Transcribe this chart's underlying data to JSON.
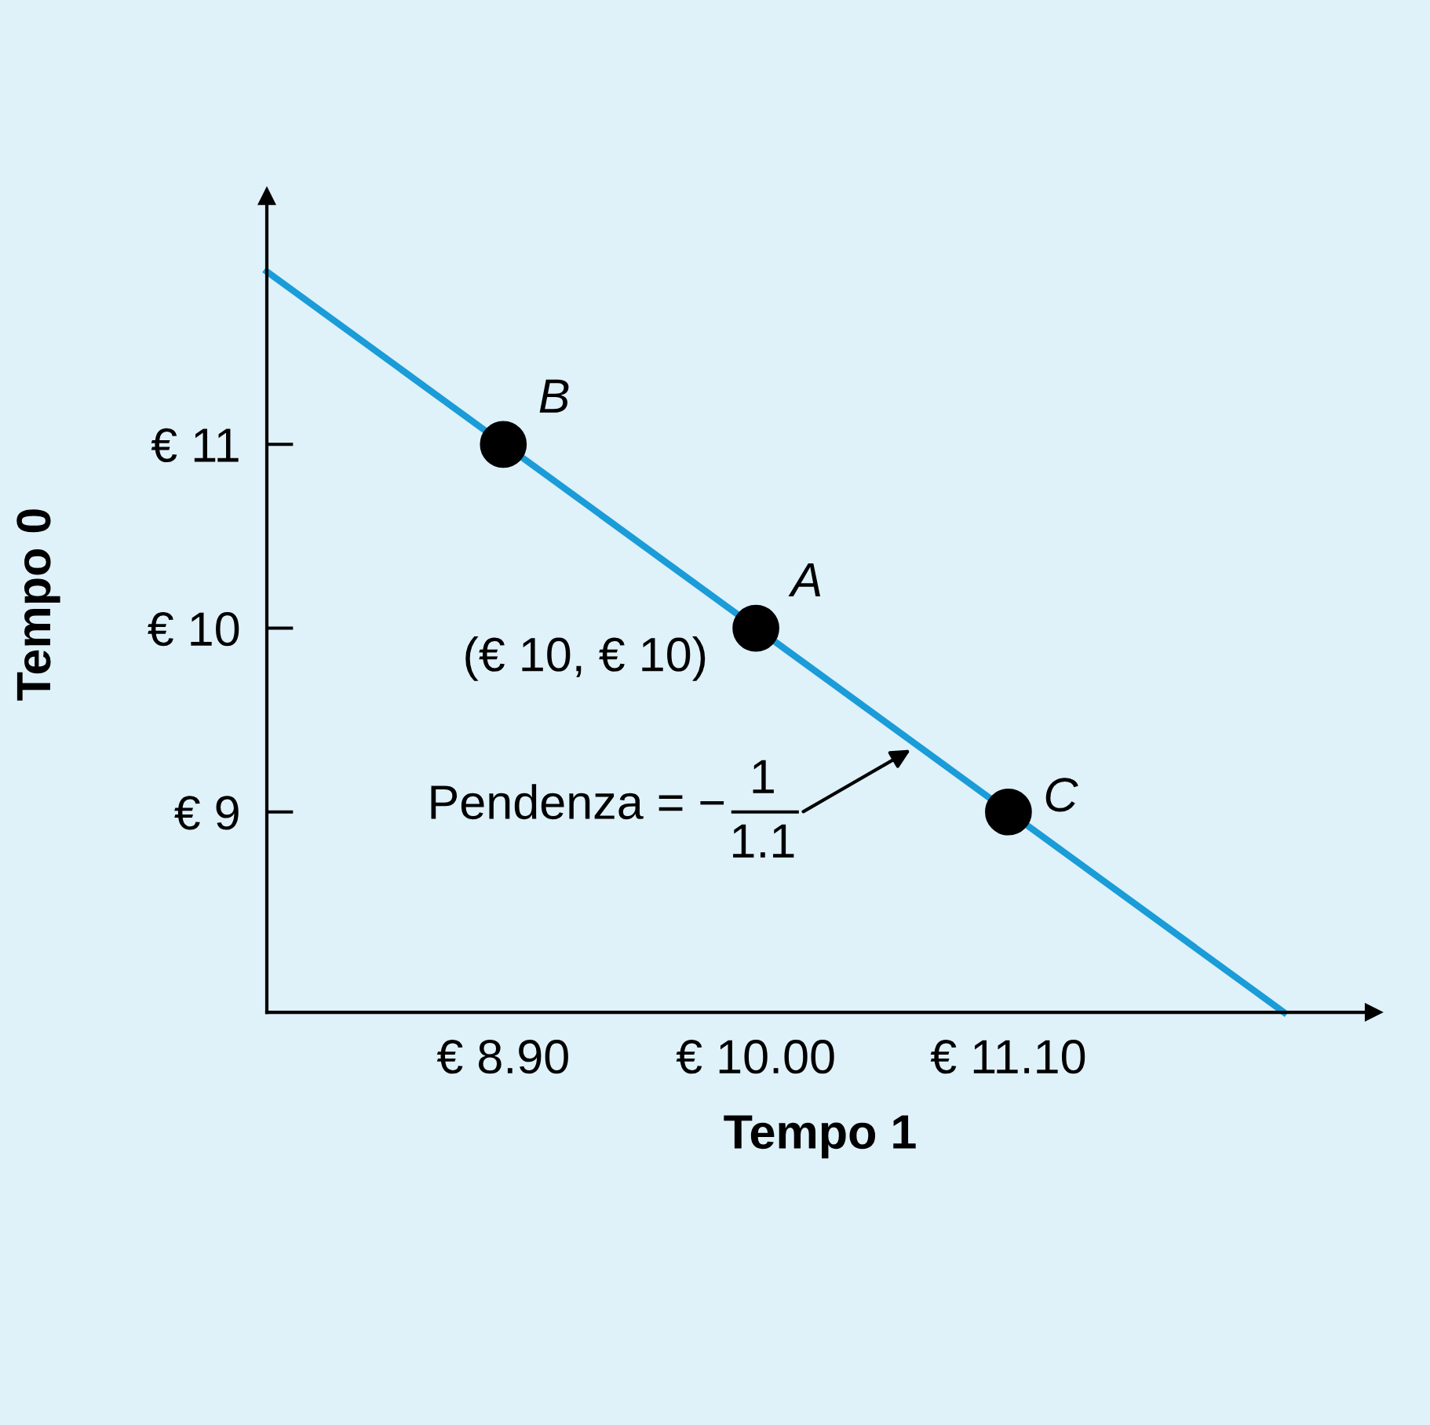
{
  "chart_data": {
    "type": "line",
    "xlabel": "Tempo 1",
    "ylabel": "Tempo 0",
    "xlim": [
      7.87,
      12.69
    ],
    "ylim": [
      7.91,
      12.35
    ],
    "xticks": [
      {
        "value": 8.9,
        "label": "€ 8.90"
      },
      {
        "value": 10.0,
        "label": "€ 10.00"
      },
      {
        "value": 11.1,
        "label": "€ 11.10"
      }
    ],
    "yticks": [
      {
        "value": 9,
        "label": "€ 9"
      },
      {
        "value": 10,
        "label": "€ 10"
      },
      {
        "value": 11,
        "label": "€ 11"
      }
    ],
    "series": [
      {
        "color": "#1a9cd8",
        "x": [
          7.87,
          12.3
        ],
        "values": [
          11.94,
          7.91
        ],
        "marker": "none"
      },
      {
        "type": "scatter",
        "color": "#000000",
        "x": [
          8.9,
          10.0,
          11.1
        ],
        "values": [
          11,
          10,
          9
        ],
        "marker": "circle"
      }
    ],
    "annotations": [
      {
        "text": "B",
        "x": 8.9,
        "y": 11
      },
      {
        "text": "A",
        "x": 10.0,
        "y": 10
      },
      {
        "text": "C",
        "x": 11.1,
        "y": 9
      },
      {
        "text": "(€ 10, € 10)",
        "x": 10.0,
        "y": 10
      },
      "Pendenza = −",
      "1",
      "1.1"
    ],
    "grid": false,
    "legend": false
  }
}
